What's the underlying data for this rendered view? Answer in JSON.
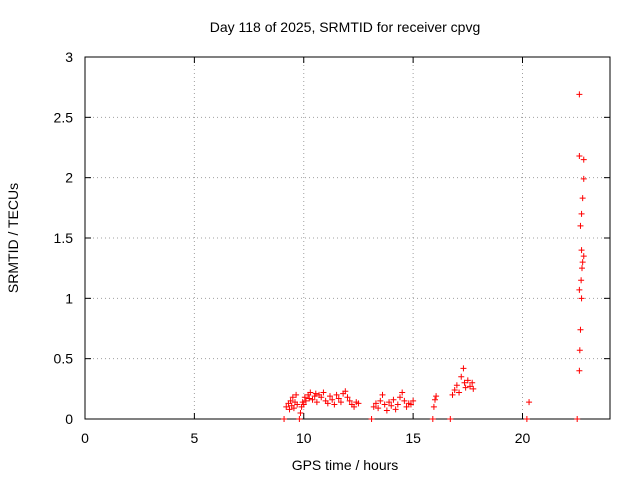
{
  "chart_data": {
    "type": "scatter",
    "title": "Day 118 of 2025, SRMTID for receiver cpvg",
    "xlabel": "GPS time / hours",
    "ylabel": "SRMTID / TECUs",
    "xlim": [
      0,
      24
    ],
    "ylim": [
      0,
      3
    ],
    "xticks": [
      0,
      5,
      10,
      15,
      20
    ],
    "yticks": [
      0,
      0.5,
      1,
      1.5,
      2,
      2.5,
      3
    ],
    "xtick_labels": [
      "0",
      "5",
      "10",
      "15",
      "20"
    ],
    "ytick_labels": [
      "0",
      "0.5",
      "1",
      "1.5",
      "2",
      "2.5",
      "3"
    ],
    "grid": true,
    "marker": "+",
    "color": "#ff0000",
    "series": [
      {
        "points": [
          [
            9.1,
            0.0
          ],
          [
            9.2,
            0.1
          ],
          [
            9.3,
            0.13
          ],
          [
            9.35,
            0.08
          ],
          [
            9.4,
            0.15
          ],
          [
            9.45,
            0.11
          ],
          [
            9.5,
            0.18
          ],
          [
            9.55,
            0.09
          ],
          [
            9.6,
            0.14
          ],
          [
            9.65,
            0.2
          ],
          [
            9.7,
            0.12
          ],
          [
            9.8,
            0.0
          ],
          [
            9.85,
            0.05
          ],
          [
            9.9,
            0.1
          ],
          [
            9.95,
            0.14
          ],
          [
            10.0,
            0.12
          ],
          [
            10.05,
            0.18
          ],
          [
            10.1,
            0.15
          ],
          [
            10.2,
            0.2
          ],
          [
            10.25,
            0.17
          ],
          [
            10.3,
            0.22
          ],
          [
            10.4,
            0.16
          ],
          [
            10.5,
            0.19
          ],
          [
            10.55,
            0.21
          ],
          [
            10.6,
            0.14
          ],
          [
            10.7,
            0.2
          ],
          [
            10.8,
            0.18
          ],
          [
            10.9,
            0.22
          ],
          [
            11.0,
            0.15
          ],
          [
            11.1,
            0.13
          ],
          [
            11.2,
            0.19
          ],
          [
            11.3,
            0.16
          ],
          [
            11.4,
            0.12
          ],
          [
            11.5,
            0.2
          ],
          [
            11.6,
            0.17
          ],
          [
            11.7,
            0.14
          ],
          [
            11.8,
            0.21
          ],
          [
            11.9,
            0.23
          ],
          [
            12.0,
            0.18
          ],
          [
            12.1,
            0.15
          ],
          [
            12.2,
            0.12
          ],
          [
            12.3,
            0.1
          ],
          [
            12.4,
            0.14
          ],
          [
            12.5,
            0.13
          ],
          [
            13.1,
            0.0
          ],
          [
            13.2,
            0.1
          ],
          [
            13.3,
            0.13
          ],
          [
            13.4,
            0.09
          ],
          [
            13.5,
            0.15
          ],
          [
            13.6,
            0.2
          ],
          [
            13.7,
            0.12
          ],
          [
            13.8,
            0.07
          ],
          [
            13.9,
            0.14
          ],
          [
            14.0,
            0.11
          ],
          [
            14.1,
            0.16
          ],
          [
            14.2,
            0.08
          ],
          [
            14.3,
            0.12
          ],
          [
            14.4,
            0.18
          ],
          [
            14.5,
            0.22
          ],
          [
            14.6,
            0.15
          ],
          [
            14.7,
            0.1
          ],
          [
            14.8,
            0.13
          ],
          [
            14.9,
            0.12
          ],
          [
            15.0,
            0.15
          ],
          [
            15.9,
            0.0
          ],
          [
            15.95,
            0.1
          ],
          [
            16.0,
            0.16
          ],
          [
            16.05,
            0.19
          ],
          [
            16.7,
            0.0
          ],
          [
            16.8,
            0.2
          ],
          [
            16.9,
            0.24
          ],
          [
            17.0,
            0.28
          ],
          [
            17.1,
            0.22
          ],
          [
            17.2,
            0.35
          ],
          [
            17.3,
            0.42
          ],
          [
            17.35,
            0.3
          ],
          [
            17.4,
            0.26
          ],
          [
            17.5,
            0.32
          ],
          [
            17.6,
            0.27
          ],
          [
            17.7,
            0.3
          ],
          [
            17.75,
            0.25
          ],
          [
            20.2,
            0.0
          ],
          [
            20.3,
            0.14
          ],
          [
            22.5,
            0.0
          ],
          [
            22.6,
            0.4
          ],
          [
            22.62,
            0.57
          ],
          [
            22.65,
            0.74
          ],
          [
            22.6,
            1.07
          ],
          [
            22.7,
            1.0
          ],
          [
            22.68,
            1.15
          ],
          [
            22.72,
            1.25
          ],
          [
            22.75,
            1.3
          ],
          [
            22.8,
            1.35
          ],
          [
            22.7,
            1.4
          ],
          [
            22.65,
            1.6
          ],
          [
            22.7,
            1.7
          ],
          [
            22.75,
            1.83
          ],
          [
            22.8,
            1.99
          ],
          [
            22.6,
            2.18
          ],
          [
            22.8,
            2.15
          ],
          [
            22.6,
            2.69
          ]
        ]
      }
    ]
  }
}
